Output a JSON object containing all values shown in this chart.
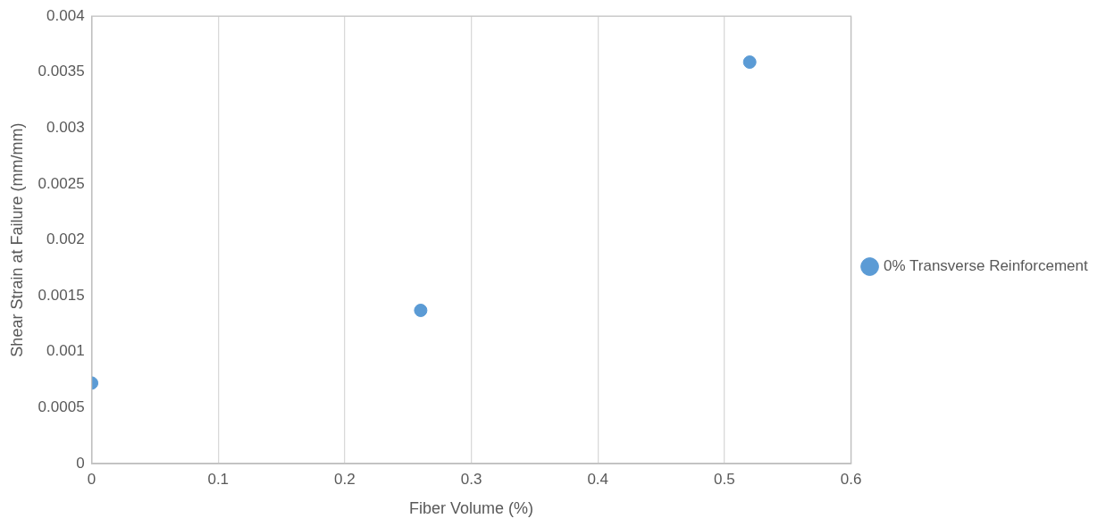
{
  "chart_data": {
    "type": "scatter",
    "xlabel": "Fiber Volume (%)",
    "ylabel": "Shear Strain at Failure (mm/mm)",
    "x": [
      0,
      0.26,
      0.52
    ],
    "series": [
      {
        "name": "0% Transverse Reinforcement",
        "color": "#5b9bd5",
        "values": [
          0.00072,
          0.00137,
          0.00359
        ]
      }
    ],
    "xlim": [
      0,
      0.6
    ],
    "xticks": [
      0,
      0.1,
      0.2,
      0.3,
      0.4,
      0.5,
      0.6
    ],
    "ylim": [
      0,
      0.004
    ],
    "yticks": [
      0,
      0.0005,
      0.001,
      0.0015,
      0.002,
      0.0025,
      0.003,
      0.0035,
      0.004
    ],
    "grid": "x",
    "legend": "right",
    "marker": "circle"
  }
}
